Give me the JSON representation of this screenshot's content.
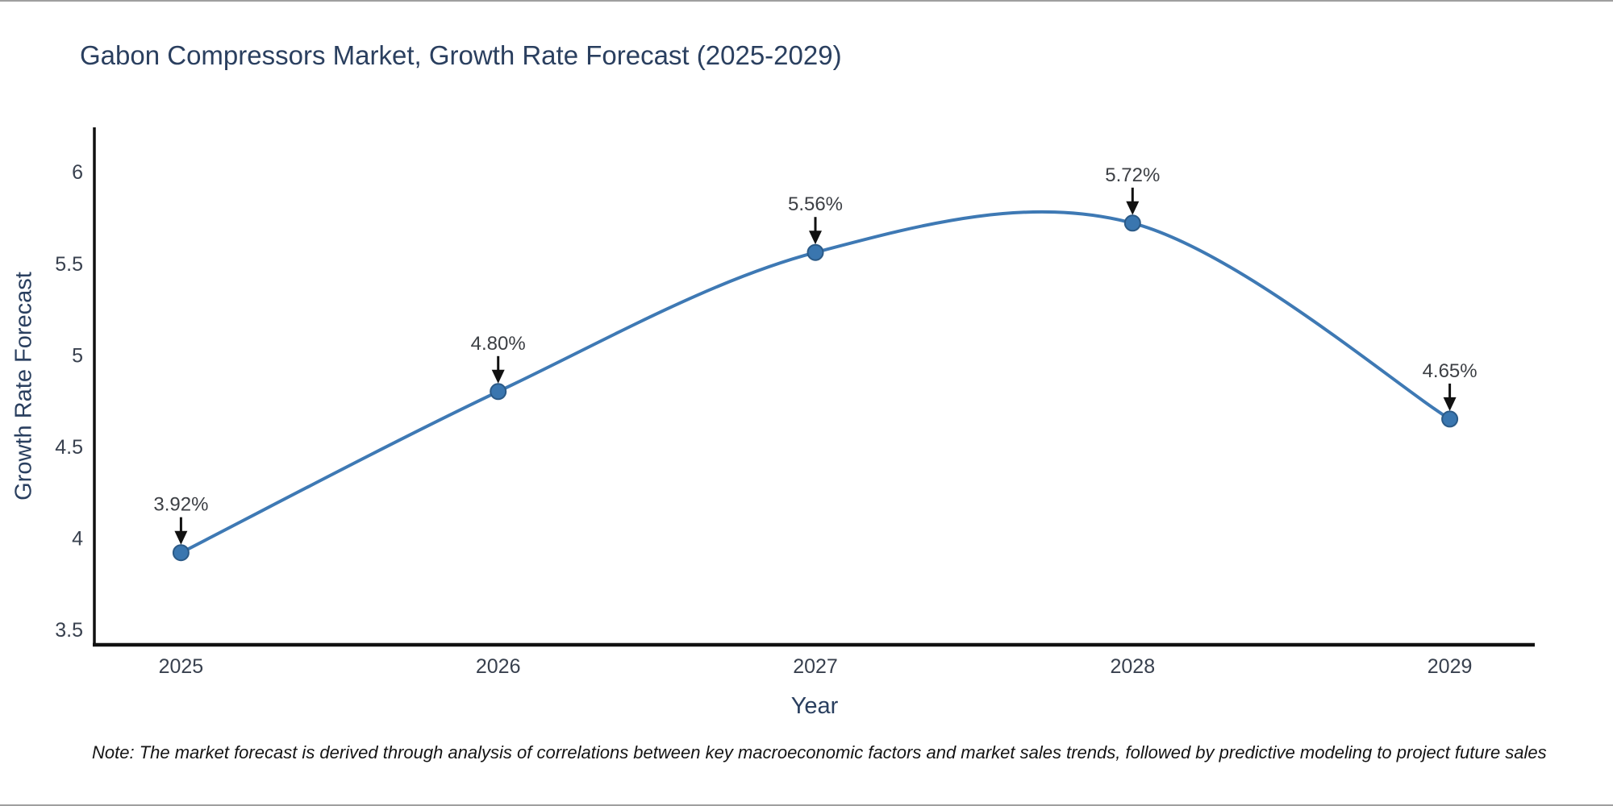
{
  "chart": {
    "title": "Gabon Compressors Market, Growth Rate Forecast (2025-2029)",
    "xlabel": "Year",
    "ylabel": "Growth Rate Forecast"
  },
  "chart_data": {
    "type": "line",
    "line_shape": "spline",
    "x": [
      2025,
      2026,
      2027,
      2028,
      2029
    ],
    "values": [
      3.92,
      4.8,
      5.56,
      5.72,
      4.65
    ],
    "point_labels": [
      "3.92%",
      "4.80%",
      "5.56%",
      "5.72%",
      "4.65%"
    ],
    "title": "Gabon Compressors Market, Growth Rate Forecast (2025-2029)",
    "xlabel": "Year",
    "ylabel": "Growth Rate Forecast",
    "xticks": [
      "2025",
      "2026",
      "2027",
      "2028",
      "2029"
    ],
    "yticks": [
      "3.5",
      "4",
      "4.5",
      "5",
      "5.5",
      "6"
    ],
    "ytick_values": [
      3.5,
      4,
      4.5,
      5,
      5.5,
      6
    ],
    "xlim": [
      2024.727,
      2029.268
    ],
    "ylim": [
      3.417,
      6.243
    ],
    "grid": false,
    "legend": "none",
    "colors": {
      "line": "#3e79b4",
      "marker_fill": "#3a76af",
      "marker_border": "#2b5a87",
      "axis_spine": "#111111",
      "annotation": "#111111",
      "title_text": "#2a3f5f"
    }
  },
  "note": {
    "text": "Note: The market forecast is derived through analysis of correlations between key macroeconomic factors and market sales trends, followed by predictive modeling to project future sales"
  }
}
